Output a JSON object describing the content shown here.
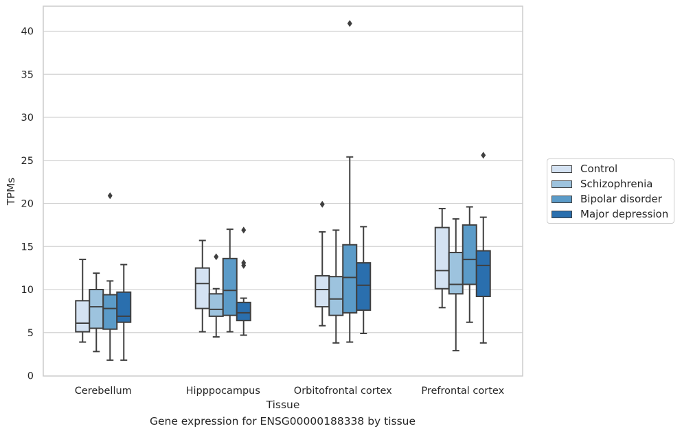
{
  "caption": "Gene expression for ENSG00000188338 by tissue",
  "chart_data": {
    "type": "box",
    "xlabel": "Tissue",
    "ylabel": "TPMs",
    "ylim": [
      0,
      43
    ],
    "yticks": [
      0,
      5,
      10,
      15,
      20,
      25,
      30,
      35,
      40
    ],
    "grid": "horizontal",
    "legend_position": "right",
    "categories": [
      "Cerebellum",
      "Hipppocampus",
      "Orbitofrontal cortex",
      "Prefrontal cortex"
    ],
    "series": [
      {
        "name": "Control",
        "color": "#d4e2f2",
        "boxes": [
          {
            "whislo": 3.9,
            "q1": 5.1,
            "med": 6.1,
            "q3": 8.7,
            "whishi": 13.5,
            "fliers": []
          },
          {
            "whislo": 5.1,
            "q1": 7.8,
            "med": 10.7,
            "q3": 12.5,
            "whishi": 15.7,
            "fliers": []
          },
          {
            "whislo": 5.8,
            "q1": 8.0,
            "med": 10.0,
            "q3": 11.6,
            "whishi": 16.7,
            "fliers": [
              19.9
            ]
          },
          {
            "whislo": 7.9,
            "q1": 10.1,
            "med": 12.2,
            "q3": 17.2,
            "whishi": 19.4,
            "fliers": []
          }
        ]
      },
      {
        "name": "Schizophrenia",
        "color": "#9dc3de",
        "boxes": [
          {
            "whislo": 2.8,
            "q1": 5.5,
            "med": 8.0,
            "q3": 10.0,
            "whishi": 11.9,
            "fliers": []
          },
          {
            "whislo": 4.5,
            "q1": 6.9,
            "med": 7.7,
            "q3": 9.5,
            "whishi": 10.1,
            "fliers": [
              13.8
            ]
          },
          {
            "whislo": 3.8,
            "q1": 7.0,
            "med": 8.9,
            "q3": 11.5,
            "whishi": 16.9,
            "fliers": []
          },
          {
            "whislo": 2.9,
            "q1": 9.5,
            "med": 10.6,
            "q3": 14.3,
            "whishi": 18.2,
            "fliers": []
          }
        ]
      },
      {
        "name": "Bipolar disorder",
        "color": "#5b9bc8",
        "boxes": [
          {
            "whislo": 1.8,
            "q1": 5.4,
            "med": 7.8,
            "q3": 9.4,
            "whishi": 11.0,
            "fliers": [
              20.9
            ]
          },
          {
            "whislo": 5.1,
            "q1": 7.0,
            "med": 9.9,
            "q3": 13.6,
            "whishi": 17.0,
            "fliers": []
          },
          {
            "whislo": 3.9,
            "q1": 7.3,
            "med": 11.4,
            "q3": 15.2,
            "whishi": 25.4,
            "fliers": [
              40.9
            ]
          },
          {
            "whislo": 6.2,
            "q1": 10.6,
            "med": 13.5,
            "q3": 17.5,
            "whishi": 19.6,
            "fliers": []
          }
        ]
      },
      {
        "name": "Major depression",
        "color": "#2a6fae",
        "boxes": [
          {
            "whislo": 1.8,
            "q1": 6.2,
            "med": 6.9,
            "q3": 9.7,
            "whishi": 12.9,
            "fliers": []
          },
          {
            "whislo": 4.7,
            "q1": 6.4,
            "med": 7.3,
            "q3": 8.5,
            "whishi": 9.0,
            "fliers": [
              12.8,
              13.1,
              16.9
            ]
          },
          {
            "whislo": 4.9,
            "q1": 7.6,
            "med": 10.5,
            "q3": 13.1,
            "whishi": 17.3,
            "fliers": []
          },
          {
            "whislo": 3.8,
            "q1": 9.2,
            "med": 12.8,
            "q3": 14.5,
            "whishi": 18.4,
            "fliers": [
              25.6
            ]
          }
        ]
      }
    ]
  }
}
